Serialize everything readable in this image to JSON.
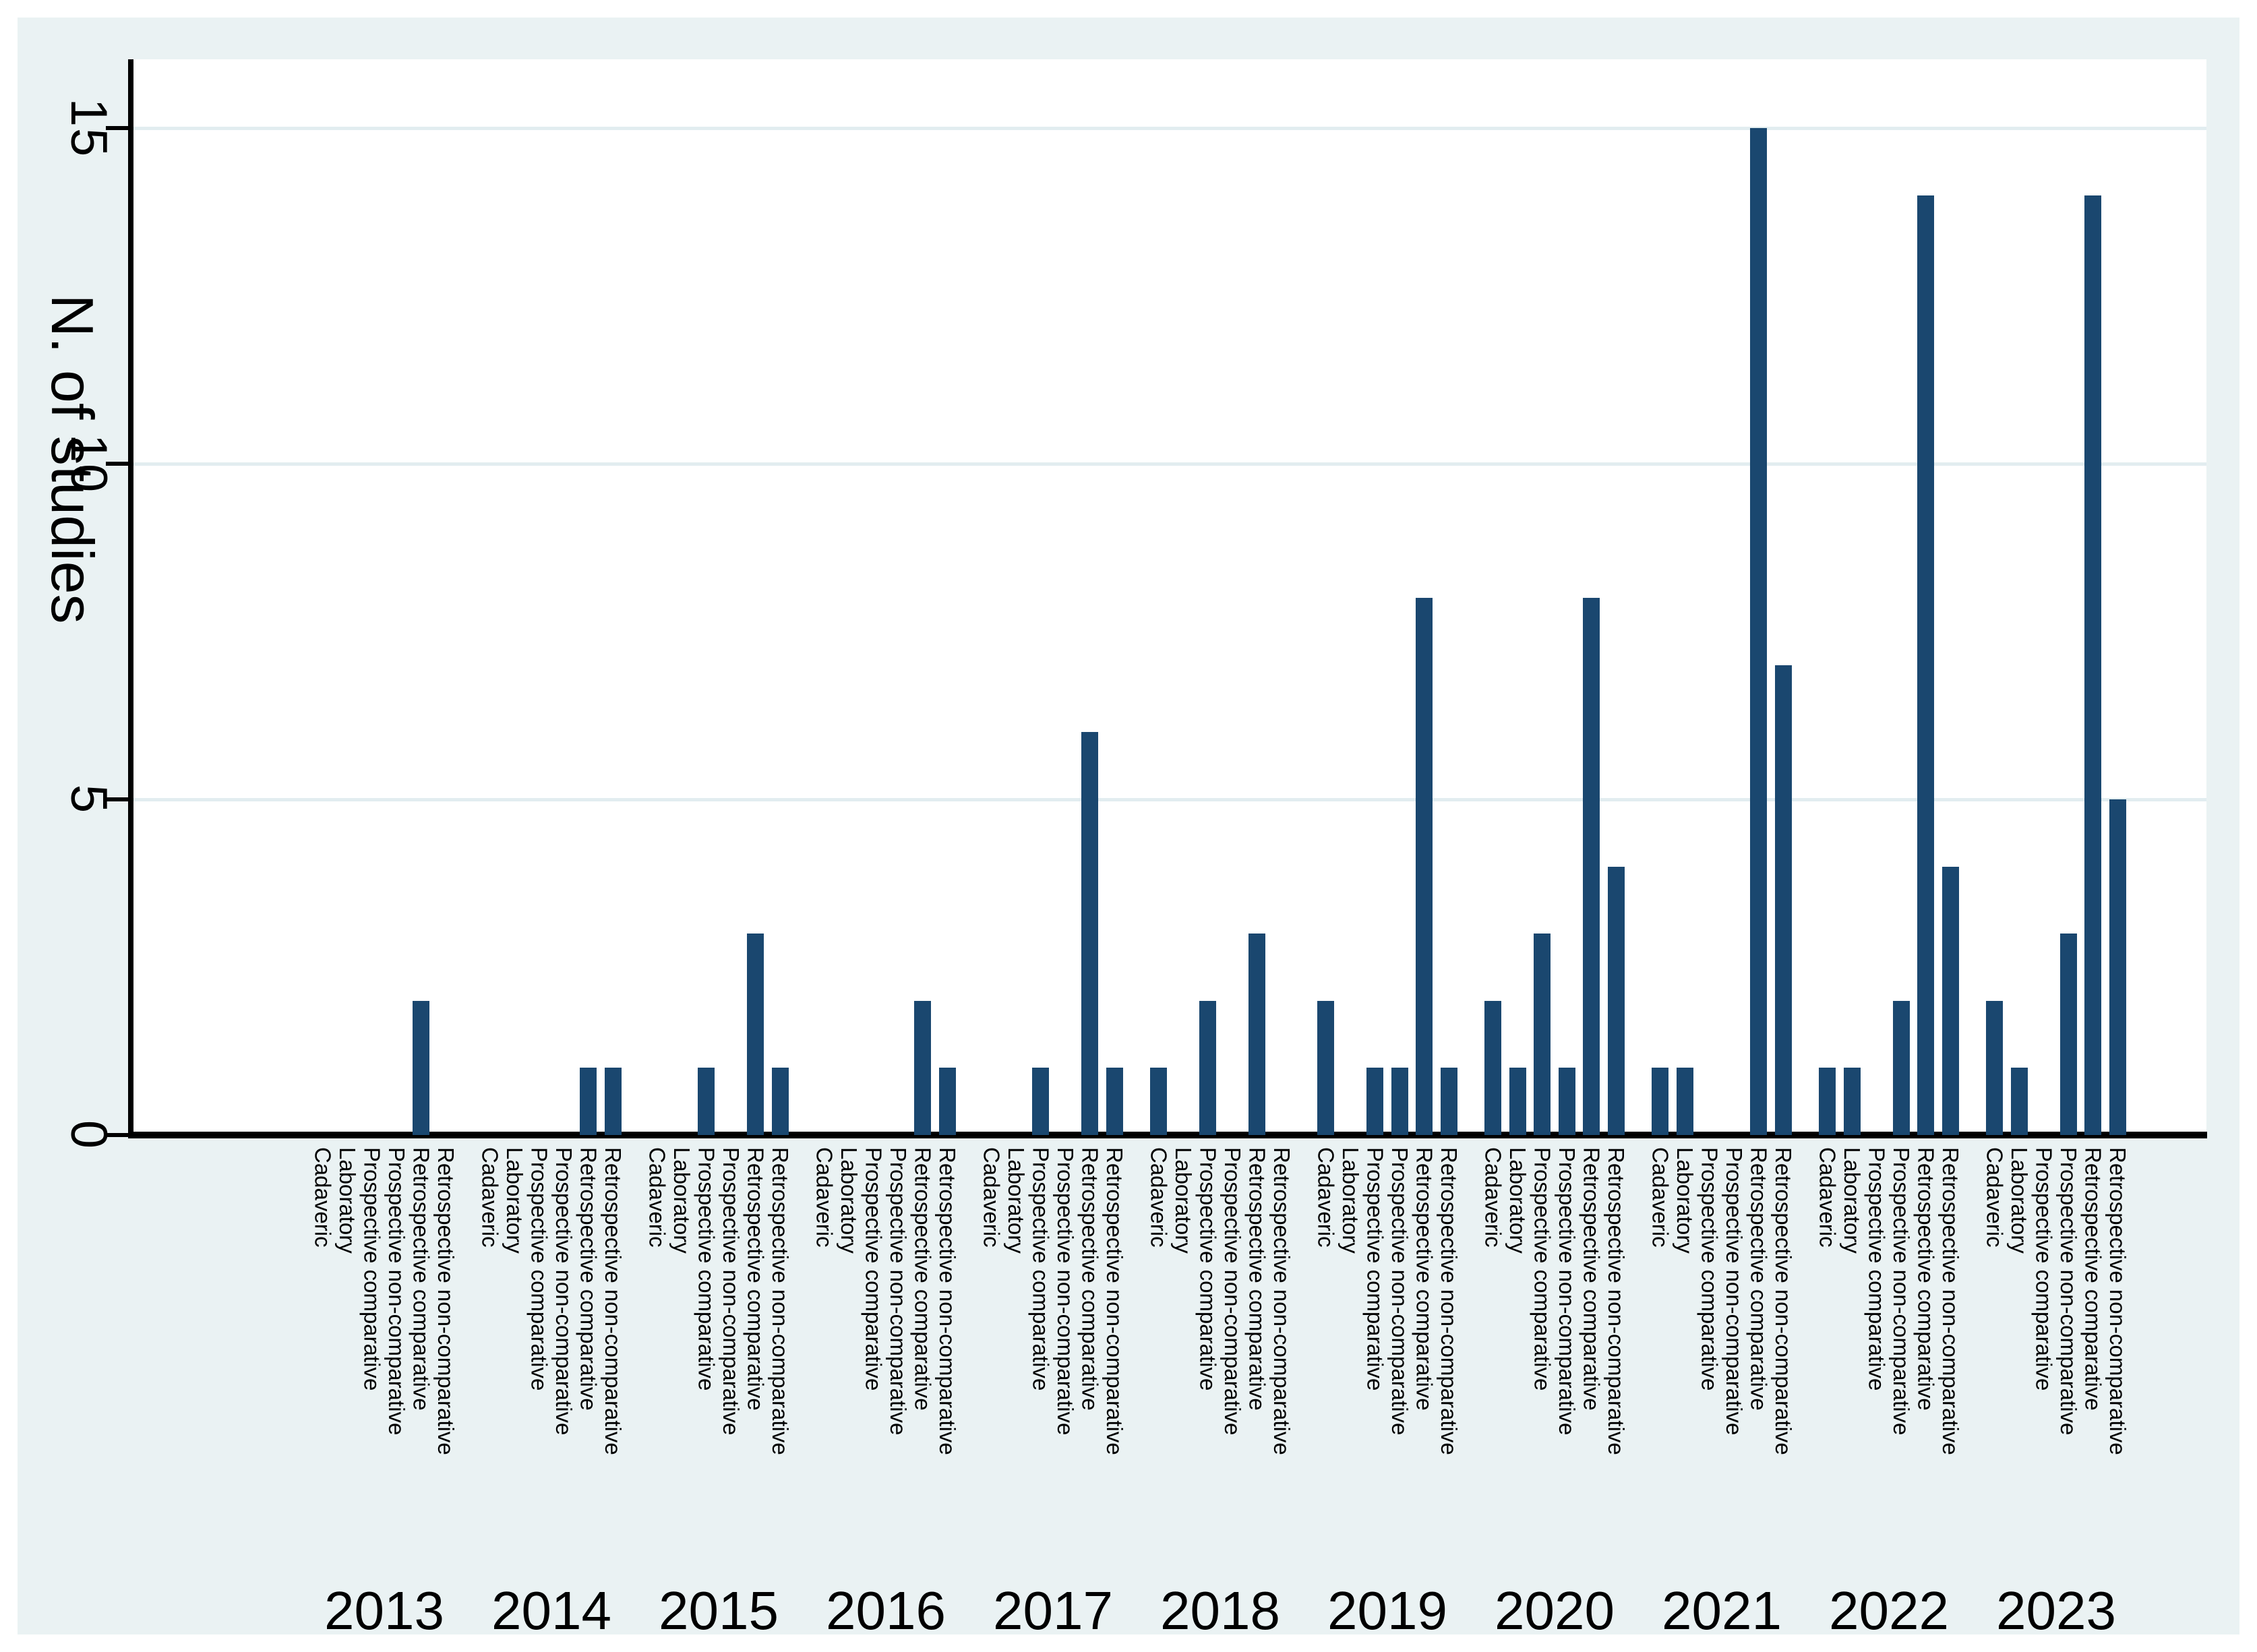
{
  "colors": {
    "background": "#EAF2F3",
    "plot_background": "#FFFFFF",
    "bar": "#1A476F",
    "gridline": "#E2EDF0",
    "axis": "#000000"
  },
  "chart_data": {
    "type": "bar",
    "title": "",
    "xlabel": "",
    "ylabel": "N. of studies",
    "ylim": [
      0,
      15
    ],
    "yticks": [
      0,
      5,
      10,
      15
    ],
    "grid": "horizontal gridlines at 5, 10, 15",
    "legend": "none",
    "group_labels": [
      "2013",
      "2014",
      "2015",
      "2016",
      "2017",
      "2018",
      "2019",
      "2020",
      "2021",
      "2022",
      "2023"
    ],
    "categories": [
      "Cadaveric",
      "Laboratory",
      "Prospective comparative",
      "Prospective non-comparative",
      "Retrospective comparative",
      "Retrospective non-comparative"
    ],
    "series": [
      {
        "year": "2013",
        "values": [
          0,
          0,
          0,
          0,
          2,
          0
        ]
      },
      {
        "year": "2014",
        "values": [
          0,
          0,
          0,
          0,
          1,
          1
        ]
      },
      {
        "year": "2015",
        "values": [
          0,
          0,
          1,
          0,
          3,
          1
        ]
      },
      {
        "year": "2016",
        "values": [
          0,
          0,
          0,
          0,
          2,
          1
        ]
      },
      {
        "year": "2017",
        "values": [
          0,
          0,
          1,
          0,
          6,
          1
        ]
      },
      {
        "year": "2018",
        "values": [
          1,
          0,
          2,
          0,
          3,
          0
        ]
      },
      {
        "year": "2019",
        "values": [
          2,
          0,
          1,
          1,
          8,
          1
        ]
      },
      {
        "year": "2020",
        "values": [
          2,
          1,
          3,
          1,
          8,
          4
        ]
      },
      {
        "year": "2021",
        "values": [
          1,
          1,
          0,
          0,
          15,
          7
        ]
      },
      {
        "year": "2022",
        "values": [
          1,
          1,
          0,
          2,
          14,
          4
        ]
      },
      {
        "year": "2023",
        "values": [
          2,
          1,
          0,
          3,
          14,
          5
        ]
      }
    ]
  },
  "layout_note": "grouped bar chart, one group per year, six study-type bars per group"
}
